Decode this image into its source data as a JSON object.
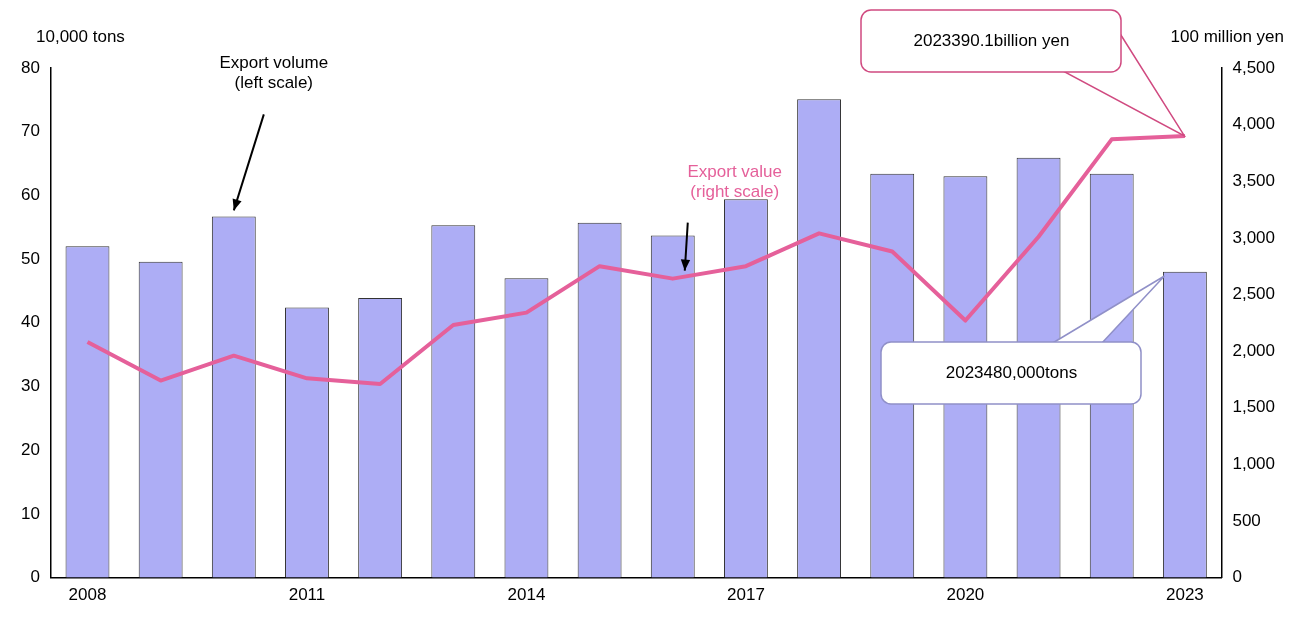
{
  "chart_data": {
    "type": "bar",
    "categories": [
      "2008",
      null,
      null,
      "2011",
      null,
      null,
      "2014",
      null,
      null,
      "2017",
      null,
      null,
      "2020",
      null,
      null,
      "2023"
    ],
    "ylabel": "10,000 tons",
    "y2label": "100 million yen",
    "series": [
      {
        "name": "Export volume (left scale)",
        "color": "#adadf5",
        "values": [
          52.0,
          49.6,
          56.7,
          42.4,
          43.9,
          55.3,
          47.0,
          55.7,
          53.7,
          59.4,
          75.1,
          63.4,
          63.0,
          65.9,
          63.4,
          48
        ]
      },
      {
        "name": "Export value (right scale)",
        "type": "line",
        "axis": "y2",
        "color": "#e5609a",
        "values": [
          2080,
          1740,
          1960,
          1760,
          1710,
          2230,
          2340,
          2750,
          2640,
          2750,
          3040,
          2880,
          2270,
          3010,
          3870,
          3900
        ]
      }
    ],
    "ylim": [
      0,
      80
    ],
    "yticks": [
      0,
      10,
      20,
      30,
      40,
      50,
      60,
      70,
      80
    ],
    "y2lim": [
      0,
      4500
    ],
    "y2ticks": [
      0,
      500,
      {
        "value": 1000,
        "label": "1,000"
      },
      {
        "value": 1500,
        "label": "1,500"
      },
      {
        "value": 2000,
        "label": "2,000"
      },
      {
        "value": 2500,
        "label": "2,500"
      },
      {
        "value": 3000,
        "label": "3,000"
      },
      {
        "value": 3500,
        "label": "3,500"
      },
      {
        "value": 4000,
        "label": "4,000"
      },
      {
        "value": 4500,
        "label": "4,500"
      }
    ],
    "annotations": [
      "2023480,000tons",
      "2023390.1billion yen"
    ],
    "grid": false,
    "legend": false,
    "marker": "none",
    "line_style": "solid"
  }
}
